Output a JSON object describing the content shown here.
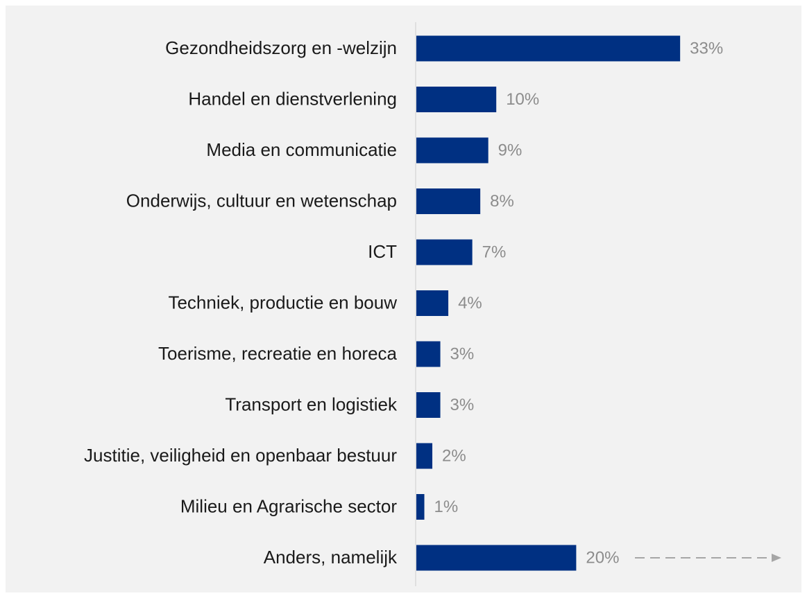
{
  "chart_data": {
    "type": "bar",
    "orientation": "horizontal",
    "categories": [
      "Gezondheidszorg en -welzijn",
      "Handel en dienstverlening",
      "Media en communicatie",
      "Onderwijs, cultuur en wetenschap",
      "ICT",
      "Techniek, productie en bouw",
      "Toerisme, recreatie en horeca",
      "Transport en logistiek",
      "Justitie, veiligheid en openbaar bestuur",
      "Milieu en Agrarische sector",
      "Anders, namelijk"
    ],
    "values": [
      33,
      10,
      9,
      8,
      7,
      4,
      3,
      3,
      2,
      1,
      20
    ],
    "value_labels": [
      "33%",
      "10%",
      "9%",
      "8%",
      "7%",
      "4%",
      "3%",
      "3%",
      "2%",
      "1%",
      "20%"
    ],
    "color": "#003082"
  }
}
